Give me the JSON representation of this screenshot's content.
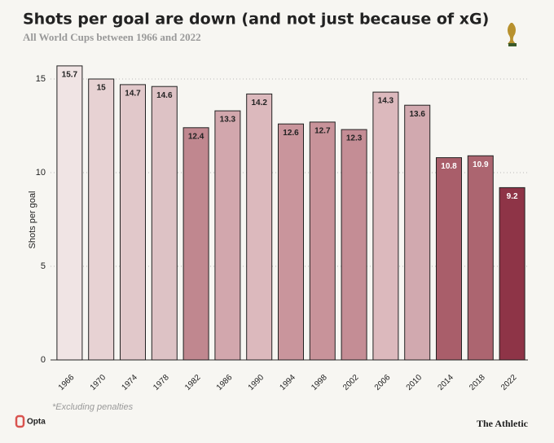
{
  "chart_data": {
    "type": "bar",
    "title": "Shots per goal are down (and not just because of xG)",
    "subtitle": "All World Cups between 1966 and 2022",
    "y_label": "Shots per goal",
    "categories": [
      "1966",
      "1970",
      "1974",
      "1978",
      "1982",
      "1986",
      "1990",
      "1994",
      "1998",
      "2002",
      "2006",
      "2010",
      "2014",
      "2018",
      "2022"
    ],
    "values": [
      15.7,
      15,
      14.7,
      14.6,
      12.4,
      13.3,
      14.2,
      12.6,
      12.7,
      12.3,
      14.3,
      13.6,
      10.8,
      10.9,
      9.2
    ],
    "colors": [
      "#f0e4e4",
      "#e7d2d3",
      "#e1c8ca",
      "#ddc2c5",
      "#c0878f",
      "#d2a7ad",
      "#dcb9bd",
      "#c9959c",
      "#c8939a",
      "#c48d95",
      "#dcb9bd",
      "#d1a9af",
      "#a95e6a",
      "#ac6570",
      "#8e3447"
    ],
    "ylim": [
      0,
      16
    ],
    "yticks": [
      0,
      5,
      10,
      15
    ],
    "grid": true,
    "footnote": "*Excluding penalties",
    "source_logo": "Opta",
    "publisher": "The Athletic"
  }
}
